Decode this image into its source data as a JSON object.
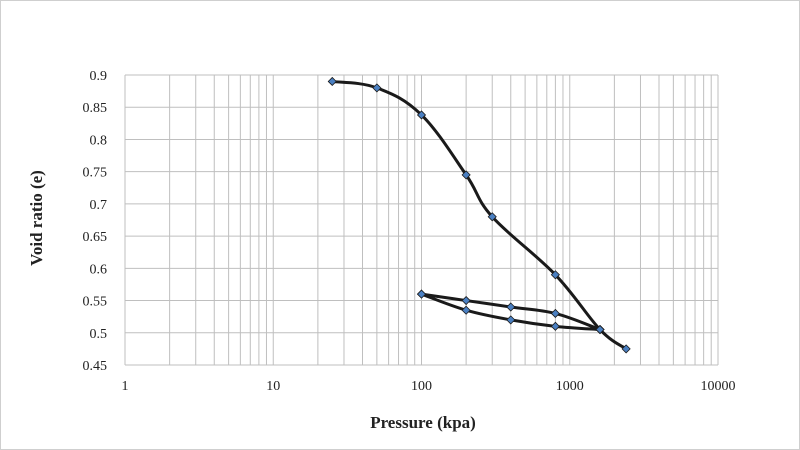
{
  "chart_data": {
    "type": "scatter",
    "title": "",
    "xlabel": "Pressure (kpa)",
    "ylabel": "Void ratio  (e)",
    "x_scale": "log",
    "xlim": [
      1,
      10000
    ],
    "ylim": [
      0.45,
      0.9
    ],
    "grid": true,
    "legend": "none",
    "x_tick_labels": [
      "1",
      "10",
      "100",
      "1000",
      "10000"
    ],
    "y_tick_labels": [
      "0.45",
      "0.5",
      "0.55",
      "0.6",
      "0.65",
      "0.7",
      "0.75",
      "0.8",
      "0.85",
      "0.9"
    ],
    "series": [
      {
        "x": [
          25,
          50,
          100,
          200,
          300,
          800,
          1600,
          2400
        ],
        "y": [
          0.89,
          0.88,
          0.838,
          0.745,
          0.68,
          0.59,
          0.505,
          0.475
        ]
      },
      {
        "x": [
          1600,
          800,
          400,
          200,
          100
        ],
        "y": [
          0.505,
          0.53,
          0.54,
          0.55,
          0.56
        ]
      },
      {
        "x": [
          100,
          200,
          400,
          800,
          1600
        ],
        "y": [
          0.56,
          0.535,
          0.52,
          0.51,
          0.505
        ]
      }
    ],
    "colors": {
      "line": "#1a1a1a",
      "marker": "#4a7fc1",
      "grid": "#bfbfbf"
    }
  }
}
